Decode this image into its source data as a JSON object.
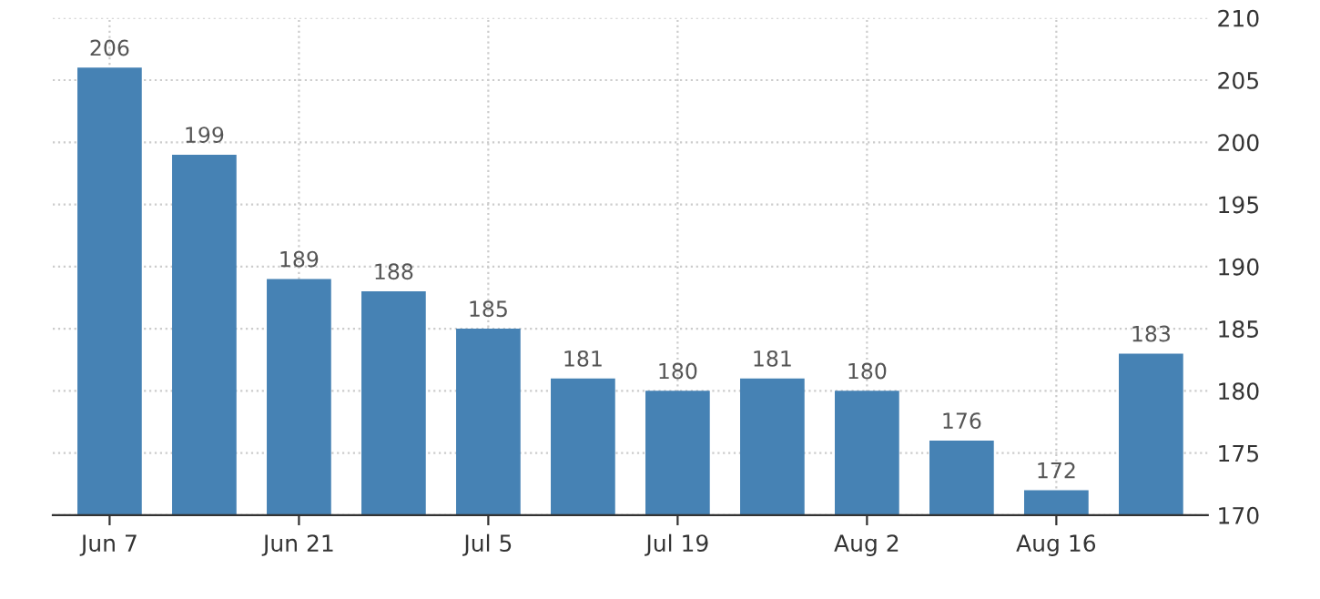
{
  "chart_data": {
    "type": "bar",
    "categories": [
      "Jun 7",
      null,
      "Jun 21",
      null,
      "Jul 5",
      null,
      "Jul 19",
      null,
      "Aug 2",
      null,
      "Aug 16",
      null
    ],
    "values": [
      206,
      199,
      189,
      188,
      185,
      181,
      180,
      181,
      180,
      176,
      172,
      183
    ],
    "color": "#4682b4",
    "ylim": [
      170,
      210
    ],
    "yticks": [
      170,
      175,
      180,
      185,
      190,
      195,
      200,
      205,
      210
    ],
    "grid": true,
    "data_labels": true
  }
}
